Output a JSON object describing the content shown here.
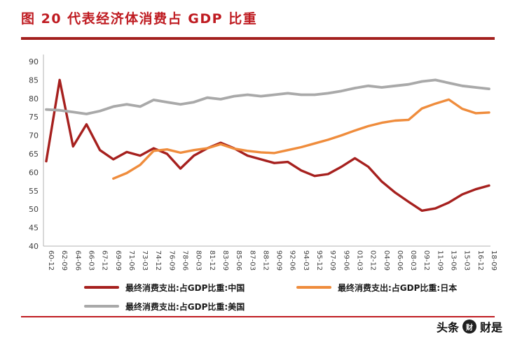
{
  "chart_data": {
    "type": "line",
    "title": "图 20  代表经济体消费占 GDP 比重",
    "xlabel": "",
    "ylabel": "",
    "ylim": [
      40,
      90
    ],
    "ytick_step": 5,
    "grid": false,
    "legend_position": "bottom",
    "x_labels": [
      "60-12",
      "62-09",
      "64-06",
      "66-03",
      "67-12",
      "69-09",
      "71-06",
      "73-03",
      "74-12",
      "76-09",
      "78-06",
      "80-03",
      "81-12",
      "83-09",
      "85-06",
      "87-03",
      "88-12",
      "90-09",
      "92-06",
      "94-03",
      "95-12",
      "97-09",
      "99-06",
      "01-03",
      "02-12",
      "04-09",
      "06-06",
      "08-03",
      "09-12",
      "11-09",
      "13-06",
      "15-03",
      "16-12",
      "18-09"
    ],
    "series": [
      {
        "name": "最终消费支出:占GDP比重:中国",
        "color": "#a6201e",
        "stroke_width": 3.4,
        "values": [
          63,
          85,
          67,
          73,
          66,
          63.5,
          65.5,
          64.5,
          66.5,
          65,
          61,
          64.5,
          66.5,
          68,
          66.5,
          64.5,
          63.5,
          62.5,
          62.8,
          60.5,
          59,
          59.5,
          61.5,
          63.8,
          61.5,
          57.5,
          54.5,
          52,
          49.6,
          50.2,
          51.8,
          54,
          55.4,
          56.4
        ]
      },
      {
        "name": "最终消费支出:占GDP比重:日本",
        "color": "#ef8c3c",
        "stroke_width": 3.4,
        "values": [
          null,
          null,
          null,
          null,
          null,
          58.3,
          59.8,
          62,
          65.8,
          66.2,
          65.3,
          66,
          66.5,
          67.6,
          66.4,
          65.8,
          65.4,
          65.2,
          66,
          66.8,
          67.8,
          68.8,
          70,
          71.3,
          72.5,
          73.4,
          74,
          74.2,
          77.3,
          78.6,
          79.7,
          77.2,
          76,
          76.2
        ]
      },
      {
        "name": "最终消费支出:占GDP比重:美国",
        "color": "#a9a9a9",
        "stroke_width": 3.8,
        "values": [
          77,
          76.8,
          76.3,
          75.8,
          76.6,
          77.8,
          78.4,
          77.8,
          79.6,
          79,
          78.4,
          79,
          80.2,
          79.8,
          80.6,
          81,
          80.6,
          81,
          81.4,
          81,
          81,
          81.4,
          82,
          82.8,
          83.4,
          83,
          83.4,
          83.8,
          84.6,
          85,
          84.2,
          83.4,
          83,
          82.6
        ]
      }
    ]
  },
  "watermark": {
    "prefix": "头条",
    "avatar_glyph": "财",
    "name": "财是"
  },
  "accent_colors": {
    "title_red": "#bf1b21",
    "rule_dark_red": "#a3201e"
  }
}
